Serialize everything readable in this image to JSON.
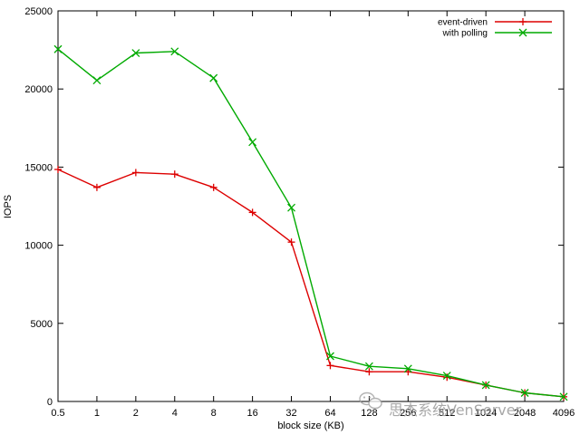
{
  "chart_data": {
    "type": "line",
    "title": "",
    "xlabel": "block size (KB)",
    "ylabel": "IOPS",
    "x": [
      "0.5",
      "1",
      "2",
      "4",
      "8",
      "16",
      "32",
      "64",
      "128",
      "256",
      "512",
      "1024",
      "2048",
      "4096"
    ],
    "x_tick_labels": [
      "0.5",
      "1",
      "2",
      "4",
      "8",
      "16",
      "32",
      "64",
      "128",
      "256",
      "512",
      "1024",
      "2048",
      "4096"
    ],
    "x_scale": "log2",
    "ylim": [
      0,
      25000
    ],
    "y_ticks": [
      0,
      5000,
      10000,
      15000,
      20000,
      25000
    ],
    "grid": false,
    "legend_position": "top-right",
    "series": [
      {
        "name": "event-driven",
        "color": "#dd0000",
        "marker": "plus",
        "values": [
          14850,
          13700,
          14650,
          14550,
          13700,
          12100,
          10200,
          2300,
          1900,
          1900,
          1550,
          1050,
          550,
          300
        ]
      },
      {
        "name": "with polling",
        "color": "#00aa00",
        "marker": "cross",
        "values": [
          22550,
          20550,
          22300,
          22400,
          20700,
          16600,
          12400,
          2900,
          2250,
          2100,
          1650,
          1050,
          550,
          300
        ]
      }
    ]
  },
  "watermark": {
    "text": "思杰系统VenServer",
    "icon": "wechat-icon"
  }
}
